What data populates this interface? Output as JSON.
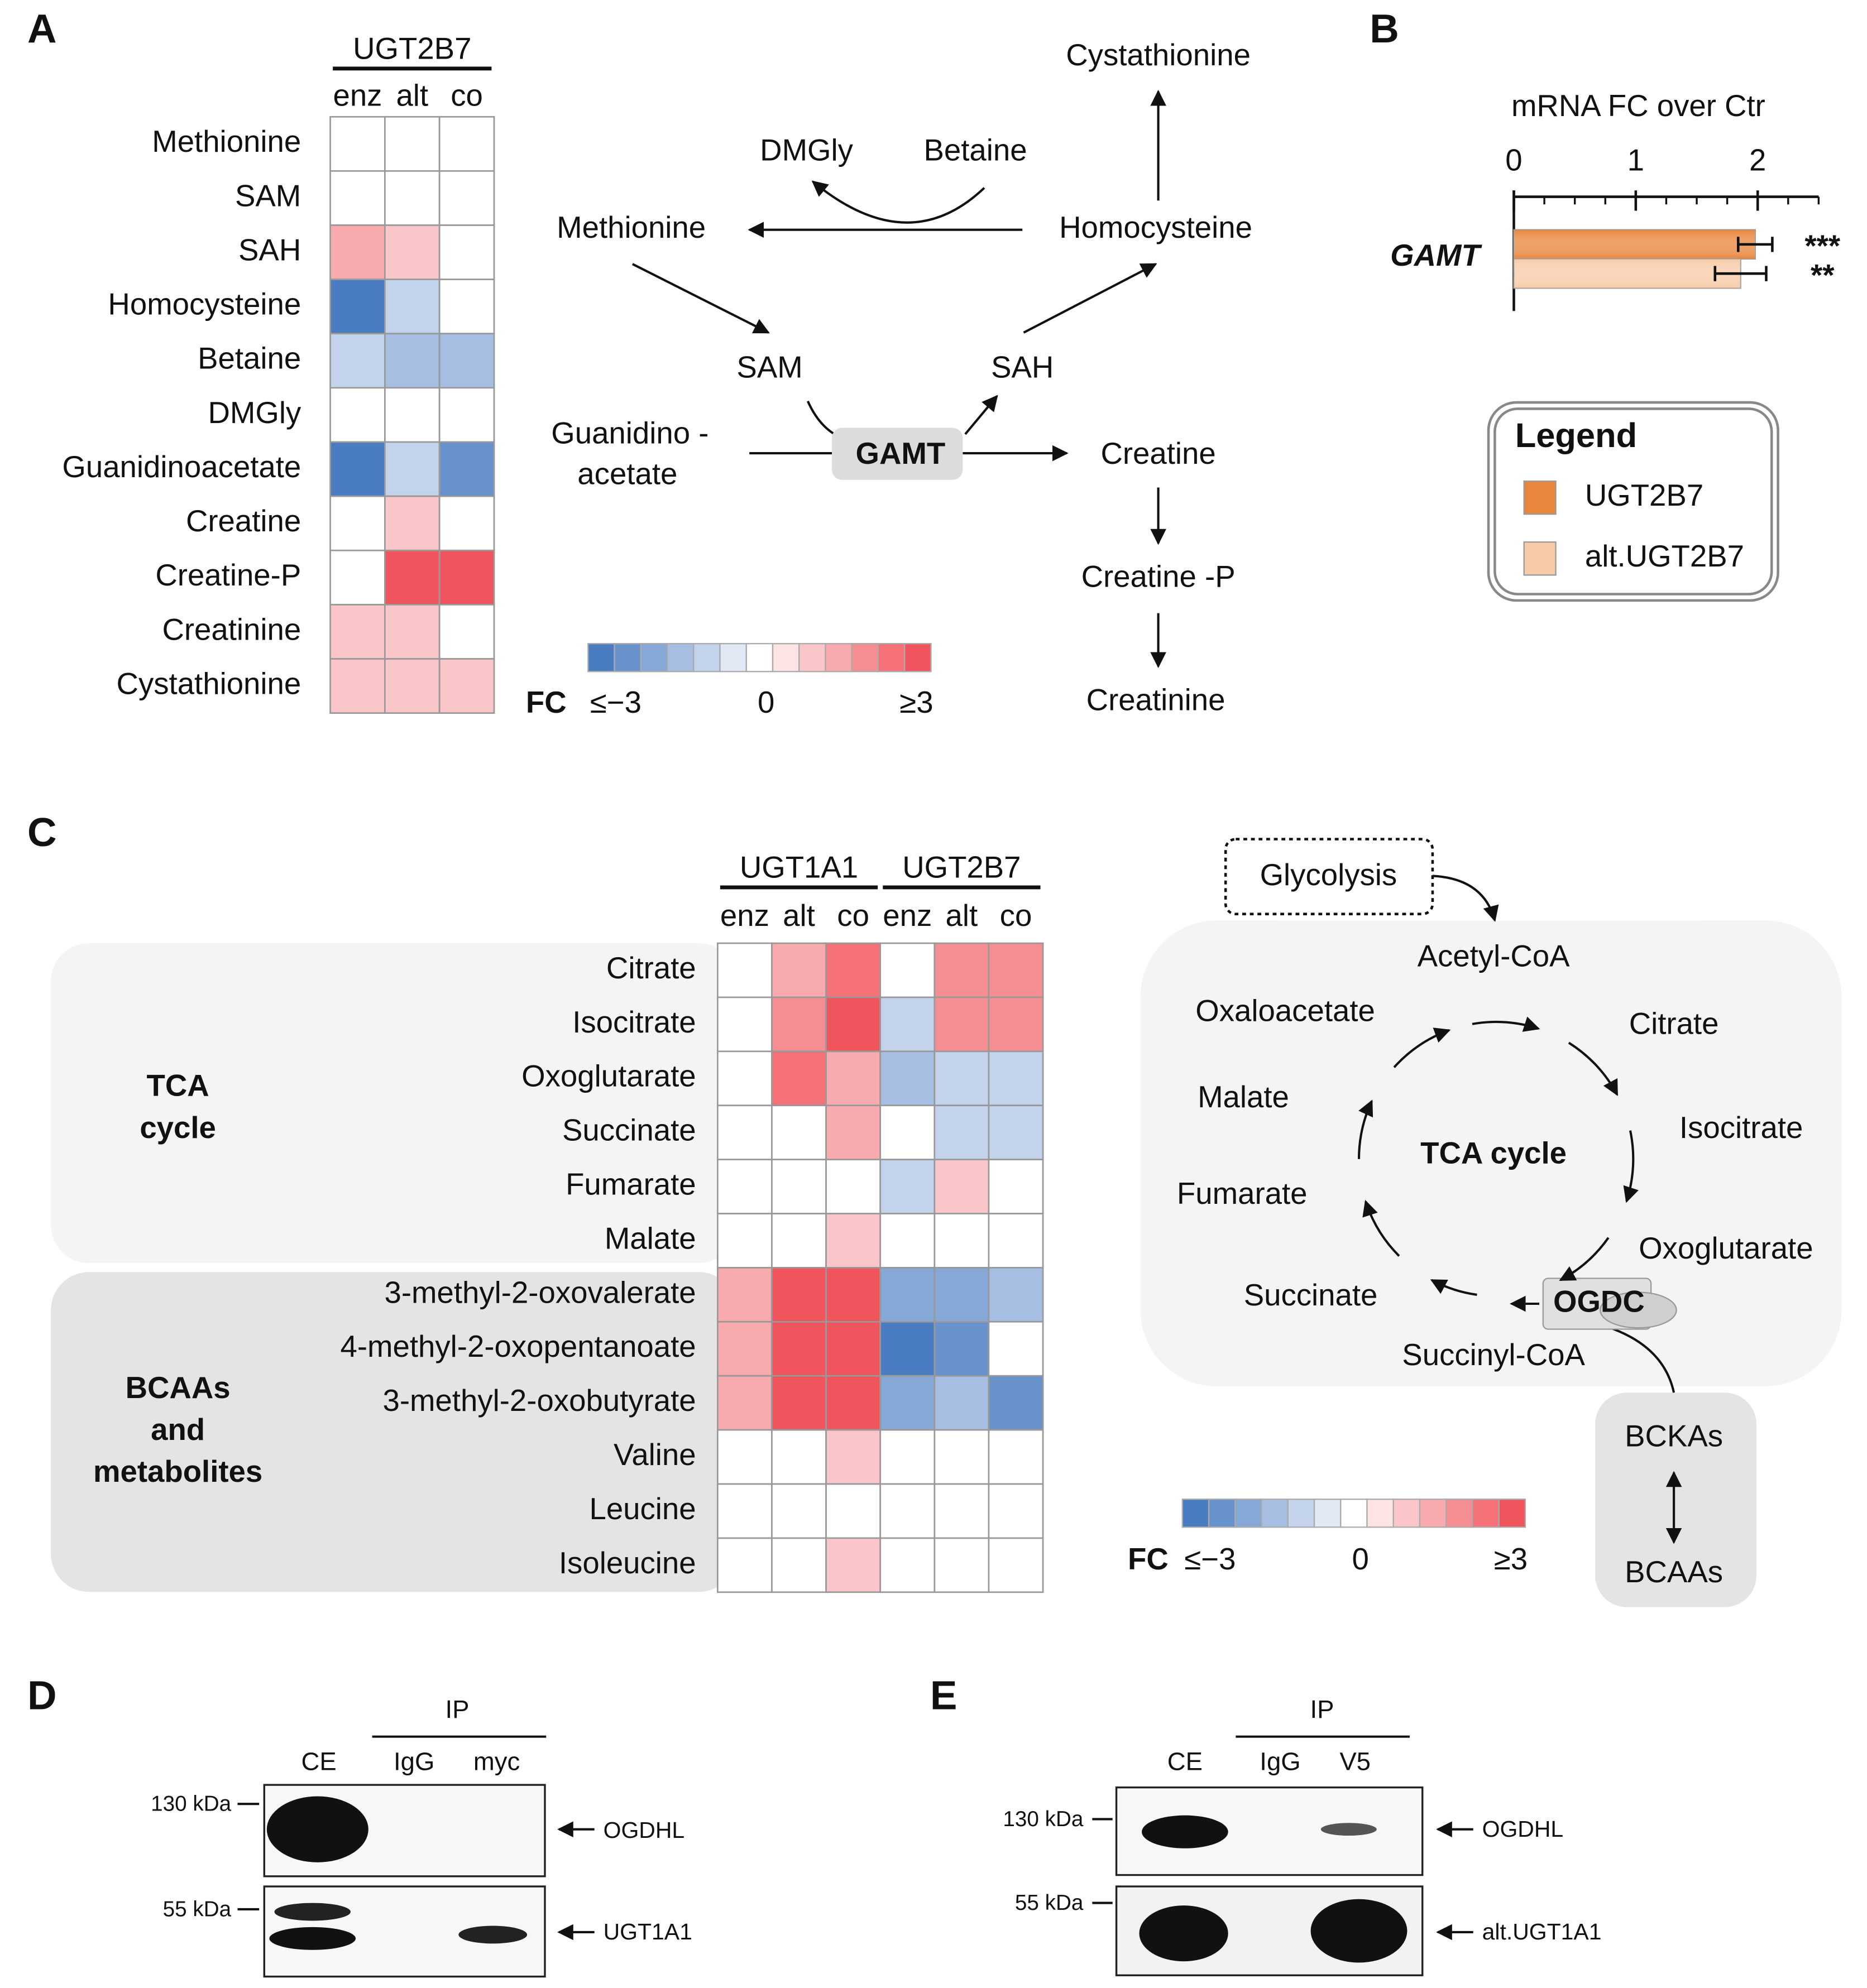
{
  "panel_a": {
    "label": "A",
    "heatmap": {
      "groups": [
        "UGT2B7"
      ],
      "columns": [
        "enz",
        "alt",
        "co"
      ],
      "rows": [
        "Methionine",
        "SAM",
        "SAH",
        "Homocysteine",
        "Betaine",
        "DMGly",
        "Guanidinoacetate",
        "Creatine",
        "Creatine-P",
        "Creatinine",
        "Cystathionine"
      ],
      "values": [
        [
          0,
          0,
          0
        ],
        [
          0,
          0,
          0
        ],
        [
          1.5,
          1,
          0
        ],
        [
          -3,
          -1,
          0
        ],
        [
          -1,
          -1.5,
          -1.5
        ],
        [
          0,
          0,
          0
        ],
        [
          -3,
          -1,
          -2.5
        ],
        [
          0,
          1,
          0
        ],
        [
          0,
          3,
          3
        ],
        [
          1,
          1,
          0
        ],
        [
          1,
          1,
          1
        ]
      ]
    },
    "colorbar": {
      "title": "FC",
      "lim": [
        -3,
        3
      ],
      "ticks": [
        {
          "value": -3,
          "label": "≤−3"
        },
        0,
        {
          "value": 3,
          "label": "≥3"
        }
      ]
    },
    "pathway": {
      "nodes": [
        "Cystathionine",
        "DMGly",
        "Betaine",
        "Methionine",
        "Homocysteine",
        "SAM",
        "SAH",
        "Guanidino -",
        "acetate",
        "Creatine",
        "Creatine -P",
        "Creatinine"
      ],
      "enzyme": "GAMT"
    }
  },
  "panel_b": {
    "label": "B",
    "type": "bar",
    "x_label": "mRNA FC over Ctr",
    "category": "GAMT",
    "xlim": [
      0,
      2.5
    ],
    "xticks": [
      0,
      1,
      2
    ],
    "xminorticks": [
      0.25,
      0.5,
      0.75,
      1.25,
      1.5,
      1.75,
      2.25,
      2.5
    ],
    "series": [
      {
        "name": "UGT2B7",
        "color": "#e8863c",
        "value": 1.98,
        "error": 0.14,
        "significance": "***"
      },
      {
        "name": "alt.UGT2B7",
        "color": "#f7cba8",
        "value": 1.86,
        "error": 0.21,
        "significance": "**"
      }
    ],
    "legend_title": "Legend"
  },
  "panel_c": {
    "label": "C",
    "heatmap": {
      "groups": [
        "UGT1A1",
        "UGT2B7"
      ],
      "columns": [
        "enz",
        "alt",
        "co",
        "enz",
        "alt",
        "co"
      ],
      "rows": [
        "Citrate",
        "Isocitrate",
        "Oxoglutarate",
        "Succinate",
        "Fumarate",
        "Malate",
        "3-methyl-2-oxovalerate",
        "4-methyl-2-oxopentanoate",
        "3-methyl-2-oxobutyrate",
        "Valine",
        "Leucine",
        "Isoleucine"
      ],
      "values": [
        [
          0,
          1.5,
          2.5,
          0,
          2,
          2
        ],
        [
          0,
          2,
          3,
          -1,
          2,
          2
        ],
        [
          0,
          2.5,
          1.5,
          -1.5,
          -1,
          -1
        ],
        [
          0,
          0,
          1.5,
          0,
          -1,
          -1
        ],
        [
          0,
          0,
          0,
          -1,
          1,
          0
        ],
        [
          0,
          0,
          1,
          0,
          0,
          0
        ],
        [
          1.5,
          3,
          3,
          -2,
          -2,
          -1.5
        ],
        [
          1.5,
          3,
          3,
          -3,
          -2.5,
          0
        ],
        [
          1.5,
          3,
          3,
          -2,
          -1.5,
          -2.5
        ],
        [
          0,
          0,
          1,
          0,
          0,
          0
        ],
        [
          0,
          0,
          0,
          0,
          0,
          0
        ],
        [
          0,
          0,
          1,
          0,
          0,
          0
        ]
      ],
      "row_groups": [
        {
          "lines": [
            "TCA",
            "cycle"
          ]
        },
        {
          "lines": [
            "BCAAs",
            "and",
            "metabolites"
          ]
        }
      ]
    },
    "colorbar": {
      "title": "FC",
      "lim": [
        -3,
        3
      ],
      "ticks": [
        {
          "value": -3,
          "label": "≤−3"
        },
        0,
        {
          "value": 3,
          "label": "≥3"
        }
      ]
    },
    "pathway": {
      "nodes": [
        "Glycolysis",
        "Acetyl-CoA",
        "Oxaloacetate",
        "Citrate",
        "Malate",
        "Isocitrate",
        "TCA cycle",
        "Fumarate",
        "Oxoglutarate",
        "Succinate",
        "Succinyl-CoA",
        "BCKAs",
        "BCAAs"
      ],
      "enzyme": "OGDC"
    }
  },
  "panel_d": {
    "label": "D",
    "ip": "IP",
    "lanes": [
      "CE",
      "IgG",
      "myc"
    ],
    "markers": [
      "130 kDa",
      "55 kDa"
    ],
    "targets": [
      "OGDHL",
      "UGT1A1"
    ]
  },
  "panel_e": {
    "label": "E",
    "ip": "IP",
    "lanes": [
      "CE",
      "IgG",
      "V5"
    ],
    "markers": [
      "130 kDa",
      "55 kDa"
    ],
    "targets": [
      "OGDHL",
      "alt.UGT1A1"
    ]
  }
}
